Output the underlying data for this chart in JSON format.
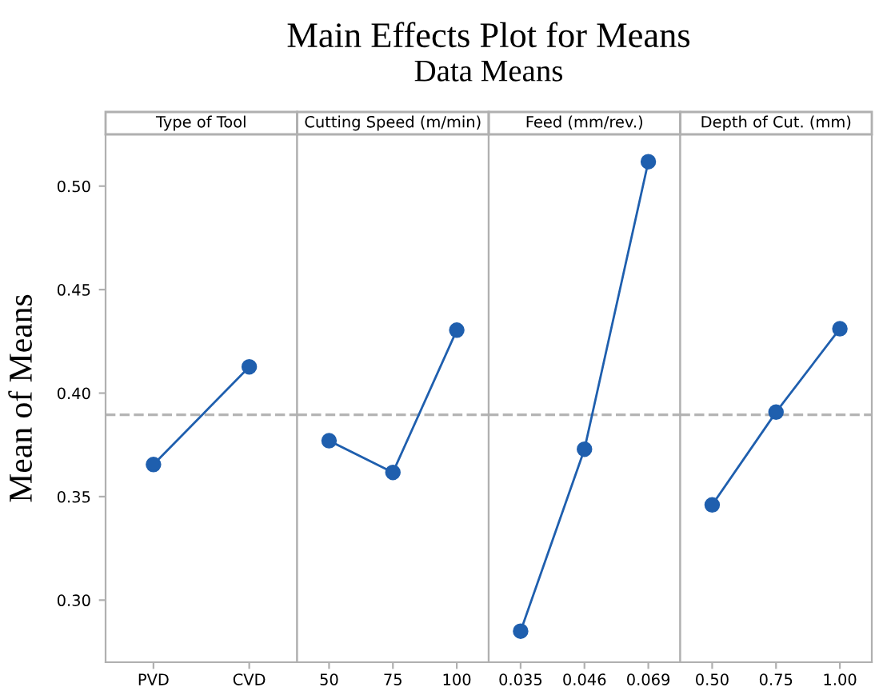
{
  "chart_data": [
    {
      "type": "line",
      "title": "Type of Tool",
      "ylabel": "Mean of Means",
      "annotations": [
        "Main Effects Plot for Means",
        "Data Means"
      ],
      "categories": [
        "PVD",
        "CVD"
      ],
      "series": [
        {
          "color": "#1f5fae",
          "values": [
            0.3655,
            0.4127
          ]
        }
      ],
      "ylim": [
        0.27,
        0.525
      ],
      "yticks": [
        {
          "value": 0.3,
          "label": "0.30"
        },
        {
          "value": 0.35,
          "label": "0.35"
        },
        {
          "value": 0.4,
          "label": "0.40"
        },
        {
          "value": 0.45,
          "label": "0.45"
        },
        {
          "value": 0.5,
          "label": "0.50"
        }
      ],
      "ref_lines": [
        {
          "axis": "y",
          "value": 0.3895,
          "color": "#b4b4b4",
          "line_style": "dashed"
        }
      ],
      "marker": "circle"
    },
    {
      "type": "line",
      "title": "Cutting Speed (m/min)",
      "categories": [
        "50",
        "75",
        "100"
      ],
      "series": [
        {
          "color": "#1f5fae",
          "values": [
            0.377,
            0.3617,
            0.4304
          ]
        }
      ],
      "ylim": [
        0.27,
        0.525
      ],
      "tick_labels": "x",
      "ref_lines": [
        {
          "axis": "y",
          "value": 0.3895,
          "color": "#b4b4b4",
          "line_style": "dashed"
        }
      ],
      "marker": "circle"
    },
    {
      "type": "line",
      "title": "Feed (mm/rev.)",
      "categories": [
        "0.035",
        "0.046",
        "0.069"
      ],
      "series": [
        {
          "color": "#1f5fae",
          "values": [
            0.285,
            0.3729,
            0.5118
          ]
        }
      ],
      "ylim": [
        0.27,
        0.525
      ],
      "tick_labels": "x",
      "ref_lines": [
        {
          "axis": "y",
          "value": 0.3895,
          "color": "#b4b4b4",
          "line_style": "dashed"
        }
      ],
      "marker": "circle"
    },
    {
      "type": "line",
      "title": "Depth of Cut. (mm)",
      "categories": [
        "0.50",
        "0.75",
        "1.00"
      ],
      "series": [
        {
          "color": "#1f5fae",
          "values": [
            0.346,
            0.3908,
            0.4311
          ]
        }
      ],
      "ylim": [
        0.27,
        0.525
      ],
      "tick_labels": "x",
      "ref_lines": [
        {
          "axis": "y",
          "value": 0.3895,
          "color": "#b4b4b4",
          "line_style": "dashed"
        }
      ],
      "marker": "circle"
    }
  ]
}
